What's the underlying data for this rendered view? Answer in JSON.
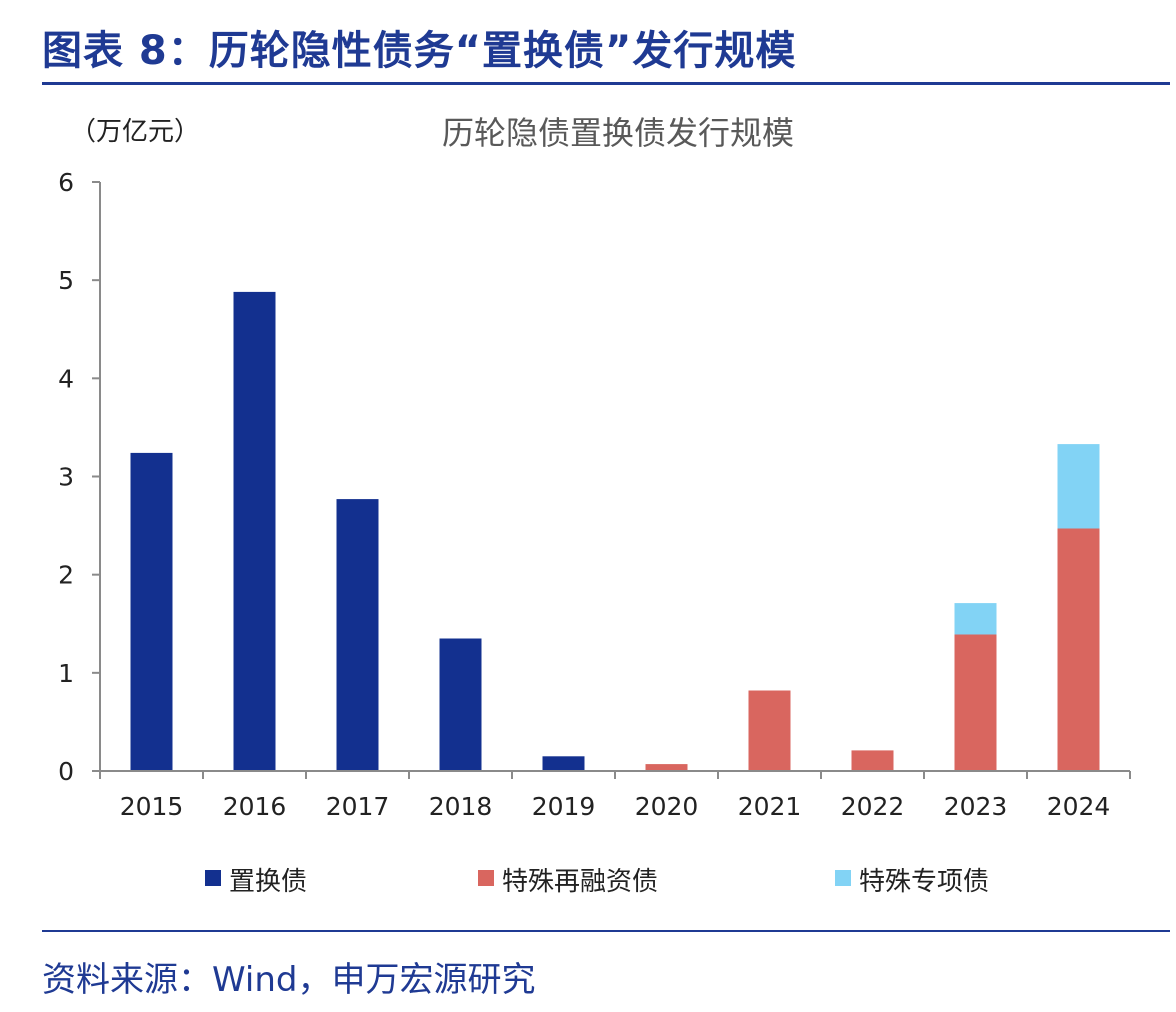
{
  "figure_title": "图表 8：历轮隐性债务“置换债”发行规模",
  "source": "资料来源：Wind，申万宏源研究",
  "colors": {
    "title_blue": "#1f3a93",
    "series_1": "#13308f",
    "series_2": "#d9665f",
    "series_3": "#82d3f5"
  },
  "chart_data": {
    "type": "bar",
    "stacked": true,
    "title": "历轮隐债置换债发行规模",
    "ylabel": "（万亿元）",
    "xlabel": "",
    "ylim": [
      0,
      6
    ],
    "yticks": [
      0,
      1,
      2,
      3,
      4,
      5,
      6
    ],
    "grid": false,
    "legend_position": "bottom",
    "categories": [
      "2015",
      "2016",
      "2017",
      "2018",
      "2019",
      "2020",
      "2021",
      "2022",
      "2023",
      "2024"
    ],
    "series": [
      {
        "name": "置换债",
        "color": "#13308f",
        "values": [
          3.24,
          4.88,
          2.77,
          1.35,
          0.15,
          0,
          0,
          0,
          0,
          0
        ]
      },
      {
        "name": "特殊再融资债",
        "color": "#d9665f",
        "values": [
          0,
          0,
          0,
          0,
          0,
          0.07,
          0.82,
          0.21,
          1.39,
          2.47
        ]
      },
      {
        "name": "特殊专项债",
        "color": "#82d3f5",
        "values": [
          0,
          0,
          0,
          0,
          0,
          0,
          0,
          0,
          0.32,
          0.86
        ]
      }
    ]
  }
}
